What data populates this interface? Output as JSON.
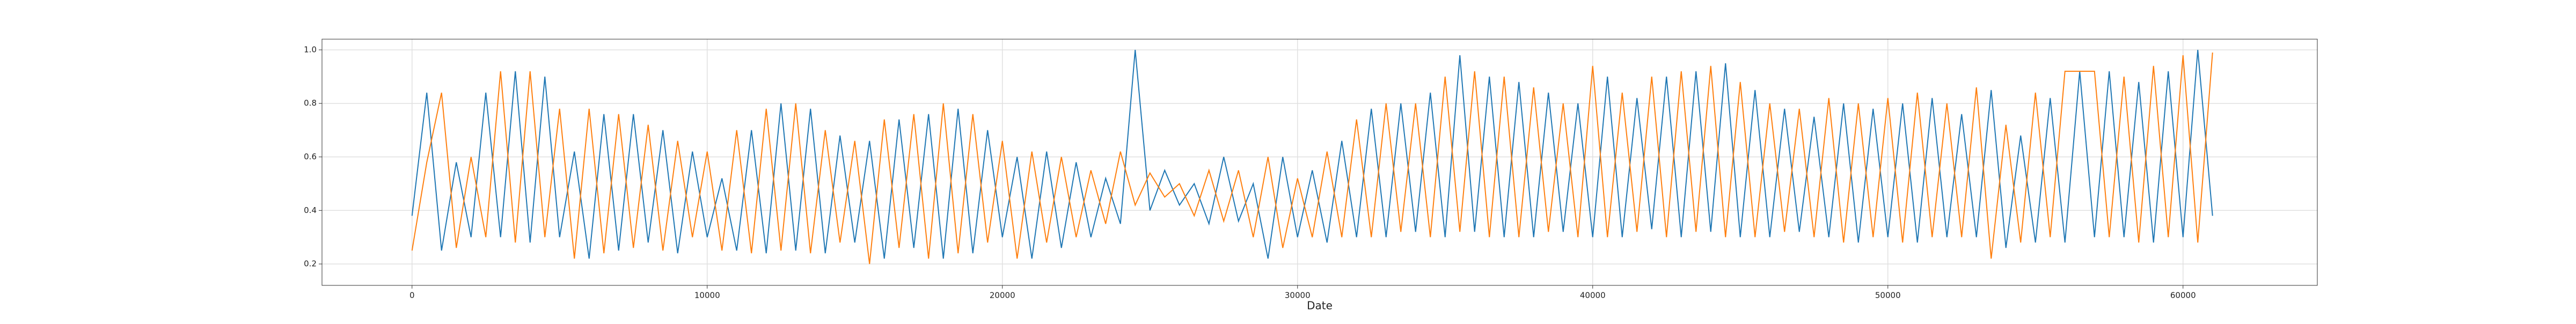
{
  "chart_data": {
    "type": "line",
    "xlabel": "Date",
    "x": [
      0,
      500,
      1000,
      1500,
      2000,
      2500,
      3000,
      3500,
      4000,
      4500,
      5000,
      5500,
      6000,
      6500,
      7000,
      7500,
      8000,
      8500,
      9000,
      9500,
      10000,
      10500,
      11000,
      11500,
      12000,
      12500,
      13000,
      13500,
      14000,
      14500,
      15000,
      15500,
      16000,
      16500,
      17000,
      17500,
      18000,
      18500,
      19000,
      19500,
      20000,
      20500,
      21000,
      21500,
      22000,
      22500,
      23000,
      23500,
      24000,
      24500,
      25000,
      25500,
      26000,
      26500,
      27000,
      27500,
      28000,
      28500,
      29000,
      29500,
      30000,
      30500,
      31000,
      31500,
      32000,
      32500,
      33000,
      33500,
      34000,
      34500,
      35000,
      35500,
      36000,
      36500,
      37000,
      37500,
      38000,
      38500,
      39000,
      39500,
      40000,
      40500,
      41000,
      41500,
      42000,
      42500,
      43000,
      43500,
      44000,
      44500,
      45000,
      45500,
      46000,
      46500,
      47000,
      47500,
      48000,
      48500,
      49000,
      49500,
      50000,
      50500,
      51000,
      51500,
      52000,
      52500,
      53000,
      53500,
      54000,
      54500,
      55000,
      55500,
      56000,
      56500,
      57000,
      57500,
      58000,
      58500,
      59000,
      59500,
      60000,
      60500,
      61000
    ],
    "series": [
      {
        "color": "#1f77b4",
        "values": [
          0.38,
          0.84,
          0.25,
          0.58,
          0.3,
          0.84,
          0.3,
          0.92,
          0.28,
          0.9,
          0.3,
          0.62,
          0.22,
          0.76,
          0.25,
          0.76,
          0.28,
          0.7,
          0.24,
          0.62,
          0.3,
          0.52,
          0.25,
          0.7,
          0.24,
          0.8,
          0.25,
          0.78,
          0.24,
          0.68,
          0.28,
          0.66,
          0.22,
          0.74,
          0.26,
          0.76,
          0.22,
          0.78,
          0.24,
          0.7,
          0.3,
          0.6,
          0.22,
          0.62,
          0.26,
          0.58,
          0.3,
          0.52,
          0.35,
          1.0,
          0.4,
          0.55,
          0.42,
          0.5,
          0.35,
          0.6,
          0.36,
          0.5,
          0.22,
          0.6,
          0.3,
          0.55,
          0.28,
          0.66,
          0.3,
          0.78,
          0.3,
          0.8,
          0.32,
          0.84,
          0.3,
          0.98,
          0.32,
          0.9,
          0.3,
          0.88,
          0.3,
          0.84,
          0.32,
          0.8,
          0.3,
          0.9,
          0.3,
          0.82,
          0.33,
          0.9,
          0.3,
          0.92,
          0.32,
          0.95,
          0.3,
          0.85,
          0.3,
          0.78,
          0.32,
          0.75,
          0.3,
          0.8,
          0.28,
          0.78,
          0.3,
          0.8,
          0.28,
          0.82,
          0.3,
          0.76,
          0.3,
          0.85,
          0.26,
          0.68,
          0.28,
          0.82,
          0.28,
          0.92,
          0.3,
          0.92,
          0.3,
          0.88,
          0.28,
          0.92,
          0.3,
          1.0,
          0.38
        ]
      },
      {
        "color": "#ff7f0e",
        "values": [
          0.25,
          0.58,
          0.84,
          0.26,
          0.6,
          0.3,
          0.92,
          0.28,
          0.92,
          0.3,
          0.78,
          0.22,
          0.78,
          0.24,
          0.76,
          0.26,
          0.72,
          0.25,
          0.66,
          0.3,
          0.62,
          0.25,
          0.7,
          0.24,
          0.78,
          0.25,
          0.8,
          0.24,
          0.7,
          0.28,
          0.66,
          0.2,
          0.74,
          0.26,
          0.76,
          0.22,
          0.8,
          0.24,
          0.76,
          0.28,
          0.66,
          0.22,
          0.62,
          0.28,
          0.6,
          0.3,
          0.55,
          0.35,
          0.62,
          0.42,
          0.54,
          0.45,
          0.5,
          0.38,
          0.55,
          0.36,
          0.55,
          0.3,
          0.6,
          0.26,
          0.52,
          0.3,
          0.62,
          0.3,
          0.74,
          0.3,
          0.8,
          0.32,
          0.8,
          0.3,
          0.9,
          0.32,
          0.92,
          0.3,
          0.9,
          0.3,
          0.86,
          0.32,
          0.8,
          0.3,
          0.94,
          0.3,
          0.84,
          0.32,
          0.9,
          0.3,
          0.92,
          0.32,
          0.94,
          0.3,
          0.88,
          0.3,
          0.8,
          0.32,
          0.78,
          0.3,
          0.82,
          0.28,
          0.8,
          0.3,
          0.82,
          0.28,
          0.84,
          0.3,
          0.8,
          0.3,
          0.86,
          0.22,
          0.72,
          0.28,
          0.84,
          0.3,
          0.92,
          0.92,
          0.92,
          0.3,
          0.9,
          0.28,
          0.94,
          0.3,
          0.98,
          0.28,
          0.99
        ]
      }
    ],
    "xlim": [
      -3050,
      64550
    ],
    "xticks": [
      0,
      10000,
      20000,
      30000,
      40000,
      50000,
      60000
    ],
    "ylim": [
      0.12,
      1.04
    ],
    "yticks": [
      0.2,
      0.4,
      0.6,
      0.8,
      {
        "value": 1,
        "label": "1.0"
      }
    ],
    "grid": true
  }
}
